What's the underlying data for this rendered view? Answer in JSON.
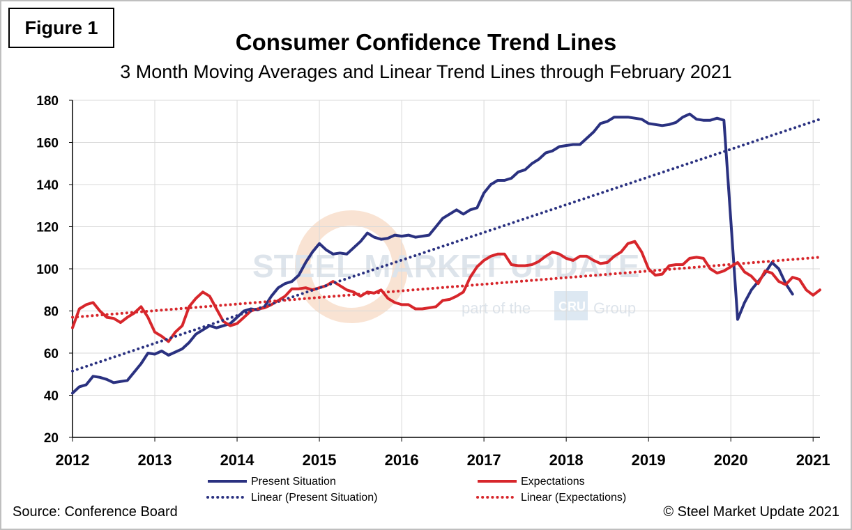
{
  "figure_label": "Figure 1",
  "source": "Source: Conference Board",
  "copyright": "© Steel Market Update 2021",
  "watermark": {
    "line1": "STEEL MARKET UPDATE",
    "line2_pre": "part of the",
    "line2_box": "CRU",
    "line2_post": "Group"
  },
  "colors": {
    "present": "#2a3180",
    "expectations": "#d7262b",
    "grid": "#d9d9d9"
  },
  "chart_data": {
    "type": "line",
    "title": "Consumer Confidence Trend Lines",
    "subtitle": "3 Month Moving Averages and Linear Trend Lines through February 2021",
    "xlabel": "",
    "ylabel": "",
    "x_start": 2012.0,
    "x_step": 0.0833333,
    "xlim": [
      2012,
      2021.083
    ],
    "ylim": [
      20,
      180
    ],
    "yticks": [
      "20",
      "40",
      "60",
      "80",
      "100",
      "120",
      "140",
      "160",
      "180"
    ],
    "xticks": [
      "2012",
      "2013",
      "2014",
      "2015",
      "2016",
      "2017",
      "2018",
      "2019",
      "2020",
      "2021"
    ],
    "grid": true,
    "legend_position": "bottom",
    "series": [
      {
        "name": "Present Situation",
        "style": "solid",
        "values": [
          41,
          44,
          45,
          49,
          48.5,
          47.5,
          46,
          46.5,
          47,
          51,
          55,
          60,
          59.5,
          61,
          59,
          60.5,
          62,
          65,
          69,
          71,
          73,
          72,
          73,
          74,
          77,
          80,
          81,
          80.5,
          82,
          87,
          91,
          93,
          94,
          97,
          103,
          108,
          112,
          109,
          107,
          107.5,
          107,
          110,
          113,
          117,
          115,
          114,
          114.5,
          116,
          115.5,
          116,
          115,
          115.5,
          116,
          120,
          124,
          126,
          128,
          126,
          128,
          129,
          136,
          140,
          142,
          142,
          143,
          146,
          147,
          150,
          152,
          155,
          156,
          158,
          158.5,
          159,
          159,
          162,
          165,
          169,
          170,
          172,
          172,
          172,
          171.5,
          171,
          169,
          168.5,
          168,
          168.5,
          169.5,
          172,
          173.5,
          171,
          170.5,
          170.5,
          171.5,
          170.5,
          123,
          76,
          84,
          90,
          94,
          98,
          103,
          100,
          93,
          88
        ]
      },
      {
        "name": "Expectations",
        "style": "solid",
        "values": [
          72,
          81,
          83,
          84,
          80,
          77,
          76.5,
          74.5,
          77,
          79,
          82,
          77,
          70,
          68,
          65.5,
          70,
          73,
          82,
          86,
          89,
          87,
          81,
          75,
          73,
          74,
          77,
          80,
          81,
          81.5,
          83,
          85,
          87,
          90.5,
          90.5,
          91,
          90,
          91,
          92,
          94,
          92,
          90,
          89,
          87,
          89,
          88.5,
          90,
          86,
          84,
          83,
          83,
          81,
          81,
          81.5,
          82,
          85,
          85.5,
          87,
          89,
          96,
          101,
          104,
          106,
          107,
          107,
          102,
          101.5,
          101.5,
          102,
          103.5,
          106,
          108,
          107,
          105,
          104,
          106,
          106,
          104,
          102.5,
          103,
          106,
          108,
          112,
          113,
          108,
          100,
          97,
          97.5,
          101.5,
          102,
          102,
          105,
          105.5,
          105,
          100,
          98,
          99,
          101,
          103,
          98.5,
          96.5,
          93,
          99,
          98,
          94,
          92.5,
          96,
          95,
          90,
          87.5,
          90
        ]
      },
      {
        "name": "Linear (Present Situation)",
        "style": "dotted",
        "trend": [
          51.5,
          171
        ]
      },
      {
        "name": "Linear (Expectations)",
        "style": "dotted",
        "trend": [
          77,
          105.5
        ]
      }
    ]
  }
}
